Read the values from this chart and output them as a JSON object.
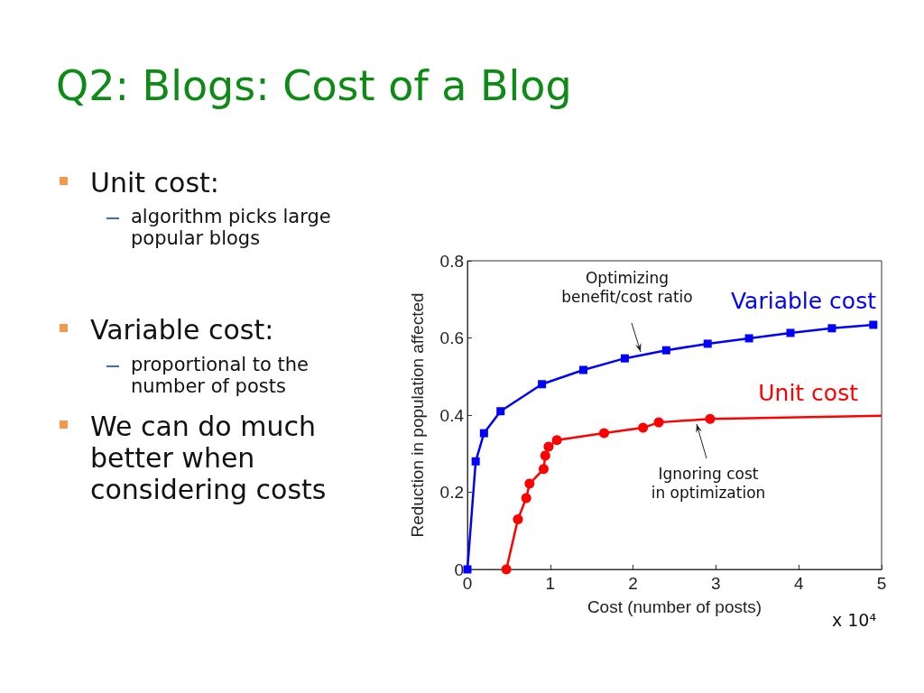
{
  "chart_data": {
    "type": "line",
    "title": "Q2: Blogs: Cost of a Blog",
    "xlabel": "Cost (number of posts)",
    "ylabel": "Reduction in population affected",
    "annotations": [
      "Unit cost:",
      "algorithm picks large popular blogs",
      "Variable cost:",
      "proportional to the number of posts",
      "We can do much better when considering costs",
      "x 10⁴",
      "Optimizing benefit/cost ratio",
      "Ignoring cost in optimization"
    ],
    "series": [
      {
        "name": "Variable cost",
        "color": "#0000ff",
        "marker": "square",
        "x": [
          0,
          0.1,
          0.2,
          0.4,
          0.9,
          1.4,
          1.9,
          2.4,
          2.9,
          3.4,
          3.9,
          4.4,
          4.9
        ],
        "values": [
          0,
          0.28,
          0.353,
          0.41,
          0.48,
          0.517,
          0.547,
          0.568,
          0.585,
          0.599,
          0.613,
          0.625,
          0.634
        ]
      },
      {
        "name": "Unit cost",
        "color": "#ff0000",
        "marker": "circle",
        "x": [
          0.47,
          0.61,
          0.71,
          0.75,
          0.92,
          0.94,
          0.98,
          1.08,
          1.65,
          2.12,
          2.31,
          2.93,
          5
        ],
        "values": [
          0,
          0.13,
          0.185,
          0.222,
          0.26,
          0.295,
          0.318,
          0.335,
          0.353,
          0.367,
          0.381,
          0.39,
          0.398
        ]
      }
    ],
    "xlim": [
      0,
      5
    ],
    "xticks": [
      0,
      1,
      2,
      3,
      4,
      5
    ],
    "ylim": [
      0,
      0.8
    ],
    "yticks": [
      0,
      0.2,
      0.4,
      0.6,
      0.8
    ],
    "grid": false,
    "legend": false,
    "line_style": "solid"
  }
}
